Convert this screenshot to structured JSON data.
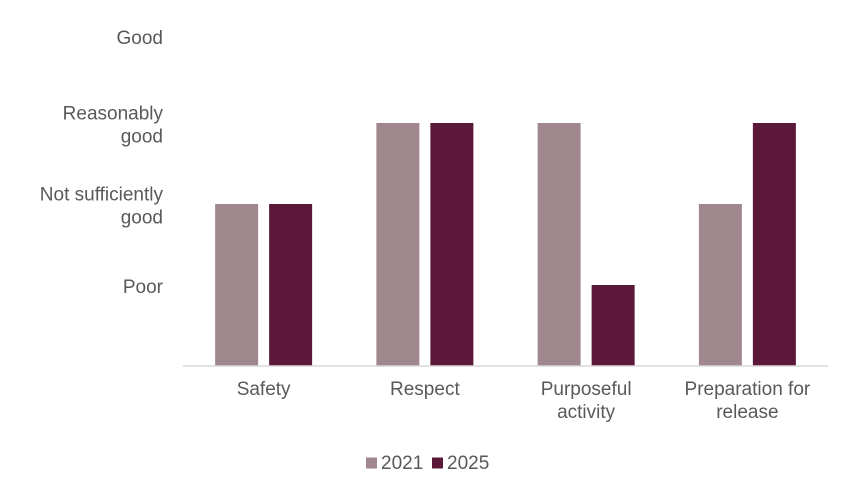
{
  "chart_data": {
    "type": "bar",
    "categories": [
      "Safety",
      "Respect",
      "Purposeful activity",
      "Preparation for release"
    ],
    "category_lines": [
      [
        "Safety"
      ],
      [
        "Respect"
      ],
      [
        "Purposeful",
        "activity"
      ],
      [
        "Preparation for",
        "release"
      ]
    ],
    "y_levels": [
      {
        "value": 1,
        "lines": [
          "Poor"
        ]
      },
      {
        "value": 2,
        "lines": [
          "Not sufficiently",
          "good"
        ]
      },
      {
        "value": 3,
        "lines": [
          "Reasonably",
          "good"
        ]
      },
      {
        "value": 4,
        "lines": [
          "Good"
        ]
      }
    ],
    "ylim": [
      0,
      4
    ],
    "series": [
      {
        "name": "2021",
        "color": "#a0868d",
        "values": [
          2,
          3,
          3,
          2
        ]
      },
      {
        "name": "2025",
        "color": "#5b1839",
        "values": [
          2,
          3,
          1,
          3
        ]
      }
    ],
    "legend": "bottom",
    "grid": false,
    "colors": {
      "axis": "#d9d9d9",
      "text": "#595959"
    }
  }
}
